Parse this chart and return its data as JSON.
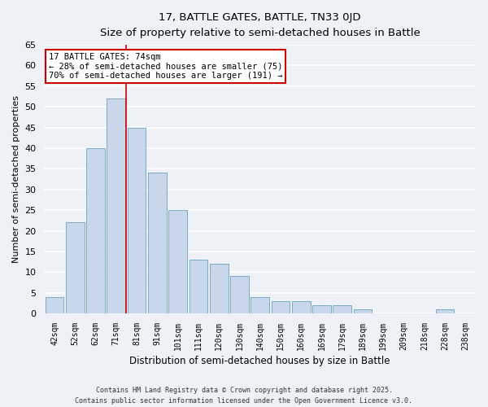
{
  "title": "17, BATTLE GATES, BATTLE, TN33 0JD",
  "subtitle": "Size of property relative to semi-detached houses in Battle",
  "xlabel": "Distribution of semi-detached houses by size in Battle",
  "ylabel": "Number of semi-detached properties",
  "bar_labels": [
    "42sqm",
    "52sqm",
    "62sqm",
    "71sqm",
    "81sqm",
    "91sqm",
    "101sqm",
    "111sqm",
    "120sqm",
    "130sqm",
    "140sqm",
    "150sqm",
    "160sqm",
    "169sqm",
    "179sqm",
    "189sqm",
    "199sqm",
    "209sqm",
    "218sqm",
    "228sqm",
    "238sqm"
  ],
  "bar_values": [
    4,
    22,
    40,
    52,
    45,
    34,
    25,
    13,
    12,
    9,
    4,
    3,
    3,
    2,
    2,
    1,
    0,
    0,
    0,
    1,
    0
  ],
  "bar_color": "#c8d8ea",
  "bar_edge_color": "#7aaac8",
  "ylim": [
    0,
    65
  ],
  "yticks": [
    0,
    5,
    10,
    15,
    20,
    25,
    30,
    35,
    40,
    45,
    50,
    55,
    60,
    65
  ],
  "property_line_x": 3.5,
  "property_line_color": "#cc0000",
  "annotation_title": "17 BATTLE GATES: 74sqm",
  "annotation_line1": "← 28% of semi-detached houses are smaller (75)",
  "annotation_line2": "70% of semi-detached houses are larger (191) →",
  "annotation_box_color": "#ffffff",
  "annotation_box_edge": "#cc0000",
  "footer_line1": "Contains HM Land Registry data © Crown copyright and database right 2025.",
  "footer_line2": "Contains public sector information licensed under the Open Government Licence v3.0.",
  "background_color": "#eef2f7",
  "grid_color": "#ffffff"
}
